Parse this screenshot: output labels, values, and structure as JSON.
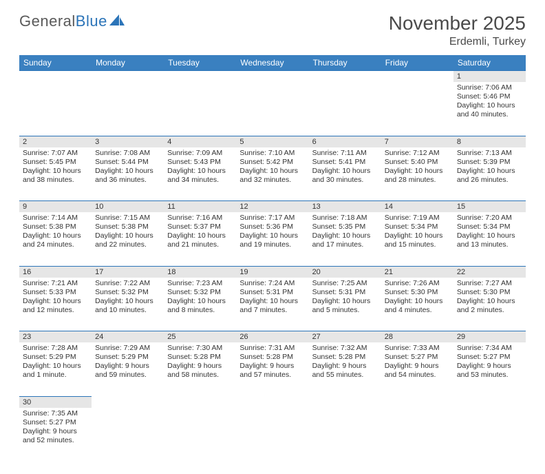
{
  "logo": {
    "text1": "General",
    "text2": "Blue"
  },
  "title": {
    "month": "November 2025",
    "location": "Erdemli, Turkey"
  },
  "header_bg": "#3a80c0",
  "daynum_bg": "#e6e6e6",
  "border_color": "#2b74b8",
  "text_color": "#333333",
  "columns": [
    "Sunday",
    "Monday",
    "Tuesday",
    "Wednesday",
    "Thursday",
    "Friday",
    "Saturday"
  ],
  "weeks": [
    [
      null,
      null,
      null,
      null,
      null,
      null,
      {
        "d": "1",
        "sr": "Sunrise: 7:06 AM",
        "ss": "Sunset: 5:46 PM",
        "dl": "Daylight: 10 hours and 40 minutes."
      }
    ],
    [
      {
        "d": "2",
        "sr": "Sunrise: 7:07 AM",
        "ss": "Sunset: 5:45 PM",
        "dl": "Daylight: 10 hours and 38 minutes."
      },
      {
        "d": "3",
        "sr": "Sunrise: 7:08 AM",
        "ss": "Sunset: 5:44 PM",
        "dl": "Daylight: 10 hours and 36 minutes."
      },
      {
        "d": "4",
        "sr": "Sunrise: 7:09 AM",
        "ss": "Sunset: 5:43 PM",
        "dl": "Daylight: 10 hours and 34 minutes."
      },
      {
        "d": "5",
        "sr": "Sunrise: 7:10 AM",
        "ss": "Sunset: 5:42 PM",
        "dl": "Daylight: 10 hours and 32 minutes."
      },
      {
        "d": "6",
        "sr": "Sunrise: 7:11 AM",
        "ss": "Sunset: 5:41 PM",
        "dl": "Daylight: 10 hours and 30 minutes."
      },
      {
        "d": "7",
        "sr": "Sunrise: 7:12 AM",
        "ss": "Sunset: 5:40 PM",
        "dl": "Daylight: 10 hours and 28 minutes."
      },
      {
        "d": "8",
        "sr": "Sunrise: 7:13 AM",
        "ss": "Sunset: 5:39 PM",
        "dl": "Daylight: 10 hours and 26 minutes."
      }
    ],
    [
      {
        "d": "9",
        "sr": "Sunrise: 7:14 AM",
        "ss": "Sunset: 5:38 PM",
        "dl": "Daylight: 10 hours and 24 minutes."
      },
      {
        "d": "10",
        "sr": "Sunrise: 7:15 AM",
        "ss": "Sunset: 5:38 PM",
        "dl": "Daylight: 10 hours and 22 minutes."
      },
      {
        "d": "11",
        "sr": "Sunrise: 7:16 AM",
        "ss": "Sunset: 5:37 PM",
        "dl": "Daylight: 10 hours and 21 minutes."
      },
      {
        "d": "12",
        "sr": "Sunrise: 7:17 AM",
        "ss": "Sunset: 5:36 PM",
        "dl": "Daylight: 10 hours and 19 minutes."
      },
      {
        "d": "13",
        "sr": "Sunrise: 7:18 AM",
        "ss": "Sunset: 5:35 PM",
        "dl": "Daylight: 10 hours and 17 minutes."
      },
      {
        "d": "14",
        "sr": "Sunrise: 7:19 AM",
        "ss": "Sunset: 5:34 PM",
        "dl": "Daylight: 10 hours and 15 minutes."
      },
      {
        "d": "15",
        "sr": "Sunrise: 7:20 AM",
        "ss": "Sunset: 5:34 PM",
        "dl": "Daylight: 10 hours and 13 minutes."
      }
    ],
    [
      {
        "d": "16",
        "sr": "Sunrise: 7:21 AM",
        "ss": "Sunset: 5:33 PM",
        "dl": "Daylight: 10 hours and 12 minutes."
      },
      {
        "d": "17",
        "sr": "Sunrise: 7:22 AM",
        "ss": "Sunset: 5:32 PM",
        "dl": "Daylight: 10 hours and 10 minutes."
      },
      {
        "d": "18",
        "sr": "Sunrise: 7:23 AM",
        "ss": "Sunset: 5:32 PM",
        "dl": "Daylight: 10 hours and 8 minutes."
      },
      {
        "d": "19",
        "sr": "Sunrise: 7:24 AM",
        "ss": "Sunset: 5:31 PM",
        "dl": "Daylight: 10 hours and 7 minutes."
      },
      {
        "d": "20",
        "sr": "Sunrise: 7:25 AM",
        "ss": "Sunset: 5:31 PM",
        "dl": "Daylight: 10 hours and 5 minutes."
      },
      {
        "d": "21",
        "sr": "Sunrise: 7:26 AM",
        "ss": "Sunset: 5:30 PM",
        "dl": "Daylight: 10 hours and 4 minutes."
      },
      {
        "d": "22",
        "sr": "Sunrise: 7:27 AM",
        "ss": "Sunset: 5:30 PM",
        "dl": "Daylight: 10 hours and 2 minutes."
      }
    ],
    [
      {
        "d": "23",
        "sr": "Sunrise: 7:28 AM",
        "ss": "Sunset: 5:29 PM",
        "dl": "Daylight: 10 hours and 1 minute."
      },
      {
        "d": "24",
        "sr": "Sunrise: 7:29 AM",
        "ss": "Sunset: 5:29 PM",
        "dl": "Daylight: 9 hours and 59 minutes."
      },
      {
        "d": "25",
        "sr": "Sunrise: 7:30 AM",
        "ss": "Sunset: 5:28 PM",
        "dl": "Daylight: 9 hours and 58 minutes."
      },
      {
        "d": "26",
        "sr": "Sunrise: 7:31 AM",
        "ss": "Sunset: 5:28 PM",
        "dl": "Daylight: 9 hours and 57 minutes."
      },
      {
        "d": "27",
        "sr": "Sunrise: 7:32 AM",
        "ss": "Sunset: 5:28 PM",
        "dl": "Daylight: 9 hours and 55 minutes."
      },
      {
        "d": "28",
        "sr": "Sunrise: 7:33 AM",
        "ss": "Sunset: 5:27 PM",
        "dl": "Daylight: 9 hours and 54 minutes."
      },
      {
        "d": "29",
        "sr": "Sunrise: 7:34 AM",
        "ss": "Sunset: 5:27 PM",
        "dl": "Daylight: 9 hours and 53 minutes."
      }
    ],
    [
      {
        "d": "30",
        "sr": "Sunrise: 7:35 AM",
        "ss": "Sunset: 5:27 PM",
        "dl": "Daylight: 9 hours and 52 minutes."
      },
      null,
      null,
      null,
      null,
      null,
      null
    ]
  ]
}
